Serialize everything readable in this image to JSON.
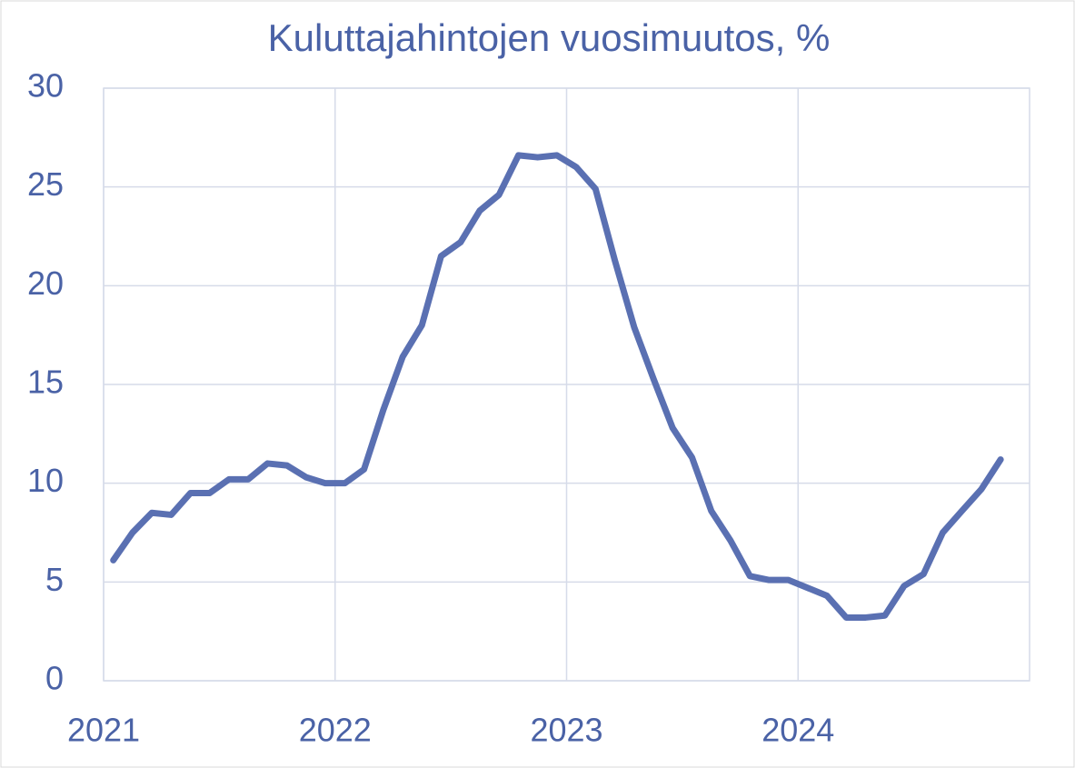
{
  "chart_data": {
    "type": "line",
    "title": "Kuluttajahintojen vuosimuutos, %",
    "x": [
      2021.042,
      2021.125,
      2021.208,
      2021.292,
      2021.375,
      2021.458,
      2021.542,
      2021.625,
      2021.708,
      2021.792,
      2021.875,
      2021.958,
      2022.042,
      2022.125,
      2022.208,
      2022.292,
      2022.375,
      2022.458,
      2022.542,
      2022.625,
      2022.708,
      2022.792,
      2022.875,
      2022.958,
      2023.042,
      2023.125,
      2023.208,
      2023.292,
      2023.375,
      2023.458,
      2023.542,
      2023.625,
      2023.708,
      2023.792,
      2023.875,
      2023.958,
      2024.042,
      2024.125,
      2024.208,
      2024.292,
      2024.375,
      2024.458,
      2024.542,
      2024.625,
      2024.708,
      2024.792,
      2024.875
    ],
    "series": [
      {
        "color": "#5a70b2",
        "values": [
          6.1,
          7.5,
          8.5,
          8.4,
          9.5,
          9.5,
          10.2,
          10.2,
          11.0,
          10.9,
          10.3,
          10.0,
          10.0,
          10.7,
          13.7,
          16.4,
          18.0,
          21.5,
          22.2,
          23.8,
          24.6,
          26.6,
          26.5,
          26.6,
          26.0,
          24.9,
          21.3,
          17.9,
          15.3,
          12.8,
          11.3,
          8.6,
          7.1,
          5.3,
          5.1,
          5.1,
          4.7,
          4.3,
          3.2,
          3.2,
          3.3,
          4.8,
          5.4,
          7.5,
          8.6,
          9.7,
          11.2
        ]
      }
    ],
    "xlim": [
      2021,
      2025
    ],
    "xticks": [
      2021,
      2022,
      2023,
      2024
    ],
    "ylim": [
      0,
      30
    ],
    "yticks": [
      0,
      5,
      10,
      15,
      20,
      25,
      30
    ],
    "grid": true
  }
}
